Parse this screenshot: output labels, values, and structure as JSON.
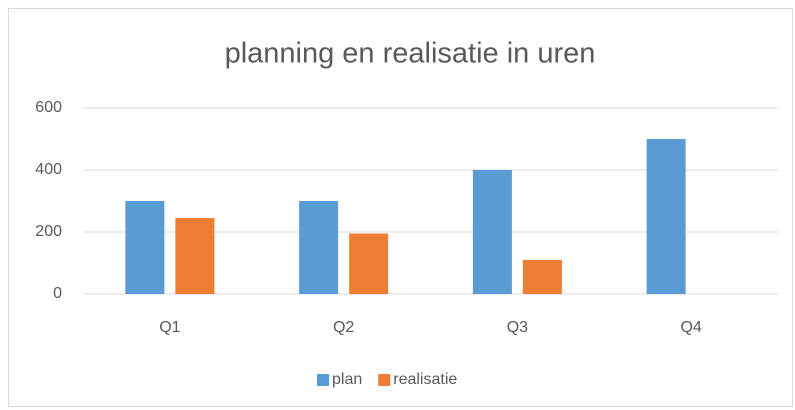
{
  "chart_data": {
    "type": "bar",
    "title": "planning en realisatie in uren",
    "categories": [
      "Q1",
      "Q2",
      "Q3",
      "Q4"
    ],
    "series": [
      {
        "name": "plan",
        "color": "#5b9bd5",
        "values": [
          300,
          300,
          400,
          500
        ]
      },
      {
        "name": "realisatie",
        "color": "#ed7d31",
        "values": [
          245,
          195,
          110,
          null
        ]
      }
    ],
    "ylim": [
      0,
      600
    ],
    "yticks": [
      0,
      200,
      400,
      600
    ],
    "grid": true,
    "legend": "bottom"
  }
}
